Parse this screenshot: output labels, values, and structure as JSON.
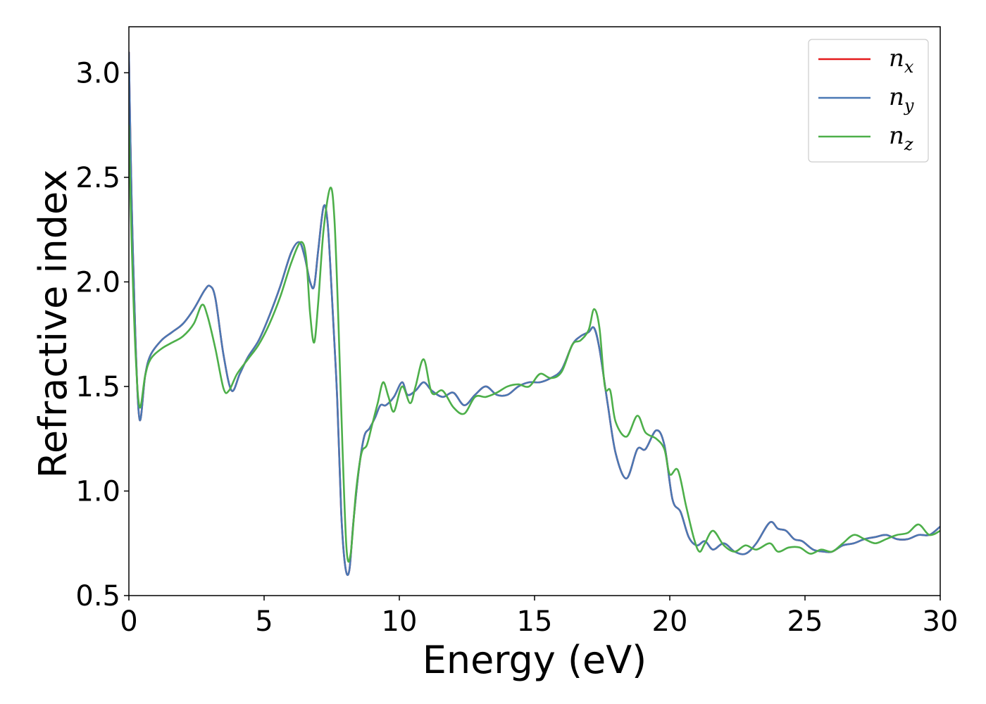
{
  "chart_data": {
    "type": "line",
    "title": "",
    "xlabel": "Energy (eV)",
    "ylabel": "Refractive index",
    "xlim": [
      0,
      30
    ],
    "ylim": [
      0.5,
      3.22
    ],
    "xticks": [
      0,
      5,
      10,
      15,
      20,
      25,
      30
    ],
    "yticks": [
      0.5,
      1.0,
      1.5,
      2.0,
      2.5,
      3.0
    ],
    "xtick_labels": [
      "0",
      "5",
      "10",
      "15",
      "20",
      "25",
      "30"
    ],
    "ytick_labels": [
      "0.5",
      "1.0",
      "1.5",
      "2.0",
      "2.5",
      "3.0"
    ],
    "grid": false,
    "legend_position": "top-right",
    "series": [
      {
        "name": "n_x",
        "label_base": "n",
        "label_sub": "x",
        "color": "#e41a1c",
        "x": [
          0,
          0.1,
          0.25,
          0.4,
          0.6,
          0.8,
          1.2,
          1.6,
          2.0,
          2.4,
          2.8,
          3.0,
          3.2,
          3.5,
          3.8,
          4.1,
          4.4,
          4.8,
          5.2,
          5.6,
          6.0,
          6.3,
          6.5,
          6.7,
          6.85,
          7.0,
          7.2,
          7.35,
          7.5,
          7.7,
          7.85,
          8.0,
          8.15,
          8.3,
          8.5,
          8.7,
          8.9,
          9.1,
          9.3,
          9.5,
          9.8,
          10.1,
          10.3,
          10.6,
          10.9,
          11.2,
          11.6,
          12.0,
          12.4,
          12.8,
          13.2,
          13.6,
          14.0,
          14.4,
          14.8,
          15.2,
          15.6,
          16.0,
          16.4,
          16.7,
          17.0,
          17.2,
          17.4,
          17.7,
          18.0,
          18.4,
          18.8,
          19.1,
          19.5,
          19.8,
          20.1,
          20.4,
          20.7,
          21.0,
          21.3,
          21.6,
          22.0,
          22.4,
          22.8,
          23.2,
          23.7,
          24.0,
          24.3,
          24.6,
          24.9,
          25.3,
          25.7,
          26.0,
          26.4,
          26.8,
          27.2,
          27.6,
          28.0,
          28.4,
          28.8,
          29.2,
          29.6,
          30.0
        ],
        "y": [
          3.1,
          2.4,
          1.7,
          1.34,
          1.55,
          1.65,
          1.72,
          1.76,
          1.8,
          1.87,
          1.96,
          1.98,
          1.92,
          1.65,
          1.48,
          1.56,
          1.64,
          1.72,
          1.84,
          1.98,
          2.14,
          2.19,
          2.12,
          2.0,
          1.98,
          2.15,
          2.36,
          2.28,
          1.95,
          1.45,
          0.9,
          0.64,
          0.62,
          0.85,
          1.1,
          1.26,
          1.3,
          1.35,
          1.41,
          1.41,
          1.45,
          1.52,
          1.46,
          1.48,
          1.52,
          1.48,
          1.45,
          1.47,
          1.41,
          1.46,
          1.5,
          1.46,
          1.46,
          1.5,
          1.52,
          1.52,
          1.54,
          1.58,
          1.7,
          1.74,
          1.76,
          1.78,
          1.68,
          1.42,
          1.18,
          1.06,
          1.2,
          1.2,
          1.29,
          1.22,
          0.96,
          0.9,
          0.78,
          0.74,
          0.76,
          0.72,
          0.75,
          0.71,
          0.7,
          0.75,
          0.85,
          0.82,
          0.81,
          0.77,
          0.76,
          0.72,
          0.71,
          0.71,
          0.74,
          0.75,
          0.77,
          0.78,
          0.79,
          0.77,
          0.77,
          0.79,
          0.79,
          0.83
        ]
      },
      {
        "name": "n_y",
        "label_base": "n",
        "label_sub": "y",
        "color": "#4a78b4",
        "x": [
          0,
          0.1,
          0.25,
          0.4,
          0.6,
          0.8,
          1.2,
          1.6,
          2.0,
          2.4,
          2.8,
          3.0,
          3.2,
          3.5,
          3.8,
          4.1,
          4.4,
          4.8,
          5.2,
          5.6,
          6.0,
          6.3,
          6.5,
          6.7,
          6.85,
          7.0,
          7.2,
          7.35,
          7.5,
          7.7,
          7.85,
          8.0,
          8.15,
          8.3,
          8.5,
          8.7,
          8.9,
          9.1,
          9.3,
          9.5,
          9.8,
          10.1,
          10.3,
          10.6,
          10.9,
          11.2,
          11.6,
          12.0,
          12.4,
          12.8,
          13.2,
          13.6,
          14.0,
          14.4,
          14.8,
          15.2,
          15.6,
          16.0,
          16.4,
          16.7,
          17.0,
          17.2,
          17.4,
          17.7,
          18.0,
          18.4,
          18.8,
          19.1,
          19.5,
          19.8,
          20.1,
          20.4,
          20.7,
          21.0,
          21.3,
          21.6,
          22.0,
          22.4,
          22.8,
          23.2,
          23.7,
          24.0,
          24.3,
          24.6,
          24.9,
          25.3,
          25.7,
          26.0,
          26.4,
          26.8,
          27.2,
          27.6,
          28.0,
          28.4,
          28.8,
          29.2,
          29.6,
          30.0
        ],
        "y": [
          3.1,
          2.4,
          1.7,
          1.34,
          1.55,
          1.65,
          1.72,
          1.76,
          1.8,
          1.87,
          1.96,
          1.98,
          1.92,
          1.65,
          1.48,
          1.56,
          1.64,
          1.72,
          1.84,
          1.98,
          2.14,
          2.19,
          2.12,
          2.0,
          1.98,
          2.15,
          2.36,
          2.28,
          1.95,
          1.45,
          0.9,
          0.64,
          0.62,
          0.85,
          1.1,
          1.26,
          1.3,
          1.35,
          1.41,
          1.41,
          1.45,
          1.52,
          1.46,
          1.48,
          1.52,
          1.48,
          1.45,
          1.47,
          1.41,
          1.46,
          1.5,
          1.46,
          1.46,
          1.5,
          1.52,
          1.52,
          1.54,
          1.58,
          1.7,
          1.74,
          1.76,
          1.78,
          1.68,
          1.42,
          1.18,
          1.06,
          1.2,
          1.2,
          1.29,
          1.22,
          0.96,
          0.9,
          0.78,
          0.74,
          0.76,
          0.72,
          0.75,
          0.71,
          0.7,
          0.75,
          0.85,
          0.82,
          0.81,
          0.77,
          0.76,
          0.72,
          0.71,
          0.71,
          0.74,
          0.75,
          0.77,
          0.78,
          0.79,
          0.77,
          0.77,
          0.79,
          0.79,
          0.83
        ]
      },
      {
        "name": "n_z",
        "label_base": "n",
        "label_sub": "z",
        "color": "#4daf4a",
        "x": [
          0,
          0.1,
          0.25,
          0.4,
          0.6,
          0.8,
          1.2,
          1.6,
          2.0,
          2.4,
          2.7,
          2.9,
          3.2,
          3.5,
          3.7,
          4.0,
          4.4,
          4.8,
          5.2,
          5.6,
          6.0,
          6.35,
          6.55,
          6.7,
          6.85,
          7.0,
          7.2,
          7.45,
          7.6,
          7.75,
          7.9,
          8.05,
          8.2,
          8.4,
          8.6,
          8.8,
          9.0,
          9.2,
          9.4,
          9.6,
          9.8,
          10.1,
          10.4,
          10.6,
          10.9,
          11.2,
          11.6,
          12.0,
          12.4,
          12.8,
          13.2,
          13.6,
          14.0,
          14.4,
          14.8,
          15.2,
          15.6,
          16.0,
          16.4,
          16.7,
          17.0,
          17.2,
          17.4,
          17.6,
          17.8,
          18.0,
          18.4,
          18.8,
          19.1,
          19.5,
          19.8,
          20.0,
          20.3,
          20.6,
          20.9,
          21.1,
          21.3,
          21.6,
          22.0,
          22.4,
          22.8,
          23.2,
          23.7,
          24.0,
          24.4,
          24.8,
          25.2,
          25.6,
          26.0,
          26.4,
          26.8,
          27.2,
          27.6,
          28.0,
          28.4,
          28.8,
          29.2,
          29.6,
          30.0
        ],
        "y": [
          2.75,
          2.2,
          1.65,
          1.4,
          1.55,
          1.63,
          1.68,
          1.71,
          1.74,
          1.8,
          1.89,
          1.84,
          1.68,
          1.49,
          1.48,
          1.56,
          1.63,
          1.7,
          1.8,
          1.93,
          2.09,
          2.19,
          2.12,
          1.85,
          1.71,
          1.9,
          2.25,
          2.45,
          2.3,
          1.8,
          1.2,
          0.72,
          0.7,
          1.0,
          1.18,
          1.22,
          1.32,
          1.42,
          1.52,
          1.45,
          1.38,
          1.5,
          1.42,
          1.5,
          1.63,
          1.47,
          1.48,
          1.4,
          1.37,
          1.45,
          1.45,
          1.47,
          1.5,
          1.51,
          1.5,
          1.56,
          1.54,
          1.57,
          1.7,
          1.72,
          1.77,
          1.87,
          1.78,
          1.5,
          1.48,
          1.33,
          1.26,
          1.36,
          1.28,
          1.25,
          1.2,
          1.08,
          1.1,
          0.93,
          0.77,
          0.71,
          0.75,
          0.81,
          0.74,
          0.71,
          0.74,
          0.72,
          0.75,
          0.71,
          0.73,
          0.73,
          0.7,
          0.72,
          0.71,
          0.75,
          0.79,
          0.77,
          0.75,
          0.77,
          0.79,
          0.8,
          0.84,
          0.79,
          0.81
        ]
      }
    ]
  }
}
